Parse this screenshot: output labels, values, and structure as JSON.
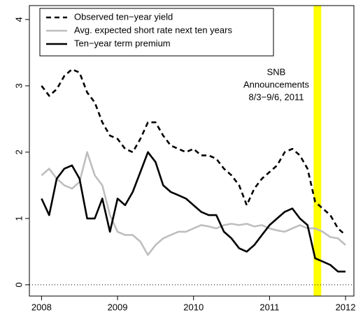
{
  "chart_data": {
    "type": "line",
    "x": [
      2008.0,
      2008.1,
      2008.2,
      2008.3,
      2008.4,
      2008.5,
      2008.6,
      2008.7,
      2008.8,
      2008.9,
      2009.0,
      2009.1,
      2009.2,
      2009.3,
      2009.4,
      2009.5,
      2009.6,
      2009.7,
      2009.8,
      2009.9,
      2010.0,
      2010.1,
      2010.2,
      2010.3,
      2010.4,
      2010.5,
      2010.6,
      2010.7,
      2010.8,
      2010.9,
      2011.0,
      2011.1,
      2011.2,
      2011.3,
      2011.4,
      2011.5,
      2011.6,
      2011.7,
      2011.8,
      2011.9,
      2012.0
    ],
    "series": [
      {
        "name": "Observed ten−year yield",
        "color": "#000000",
        "linestyle": "dashed",
        "values": [
          3.0,
          2.85,
          2.95,
          3.15,
          3.25,
          3.2,
          2.9,
          2.75,
          2.45,
          2.25,
          2.2,
          2.05,
          2.0,
          2.2,
          2.45,
          2.45,
          2.25,
          2.1,
          2.05,
          2.0,
          2.05,
          1.95,
          1.95,
          1.9,
          1.75,
          1.65,
          1.5,
          1.2,
          1.45,
          1.6,
          1.7,
          1.8,
          2.0,
          2.05,
          1.95,
          1.75,
          1.25,
          1.15,
          1.05,
          0.85,
          0.75
        ]
      },
      {
        "name": "Avg. expected short rate next ten years",
        "color": "#bebebe",
        "linestyle": "solid",
        "values": [
          1.65,
          1.75,
          1.6,
          1.5,
          1.45,
          1.55,
          2.0,
          1.65,
          1.5,
          1.05,
          0.8,
          0.75,
          0.75,
          0.65,
          0.45,
          0.6,
          0.7,
          0.75,
          0.8,
          0.8,
          0.85,
          0.9,
          0.88,
          0.85,
          0.9,
          0.92,
          0.9,
          0.92,
          0.88,
          0.9,
          0.85,
          0.82,
          0.8,
          0.85,
          0.9,
          0.85,
          0.85,
          0.8,
          0.72,
          0.7,
          0.6
        ]
      },
      {
        "name": "Ten−year term premium",
        "color": "#000000",
        "linestyle": "solid",
        "values": [
          1.3,
          1.05,
          1.6,
          1.75,
          1.8,
          1.6,
          1.0,
          1.0,
          1.3,
          0.8,
          1.3,
          1.2,
          1.4,
          1.7,
          2.0,
          1.85,
          1.5,
          1.4,
          1.35,
          1.3,
          1.2,
          1.1,
          1.05,
          1.05,
          0.8,
          0.7,
          0.55,
          0.5,
          0.6,
          0.75,
          0.9,
          1.0,
          1.1,
          1.15,
          1.0,
          0.9,
          0.4,
          0.35,
          0.3,
          0.2,
          0.2
        ]
      }
    ],
    "xlim": [
      2007.84,
      2012.11
    ],
    "ylim": [
      -0.17,
      4.21
    ],
    "xticks": [
      2008,
      2009,
      2010,
      2011,
      2012
    ],
    "yticks": [
      0,
      1,
      2,
      3,
      4
    ],
    "highlight": {
      "x": [
        2011.58,
        2011.68
      ],
      "color": "#ffff00"
    },
    "hline": 0,
    "annotation": [
      "SNB",
      "Announcements",
      "8/3−9/6, 2011"
    ],
    "legend": "top-left"
  }
}
